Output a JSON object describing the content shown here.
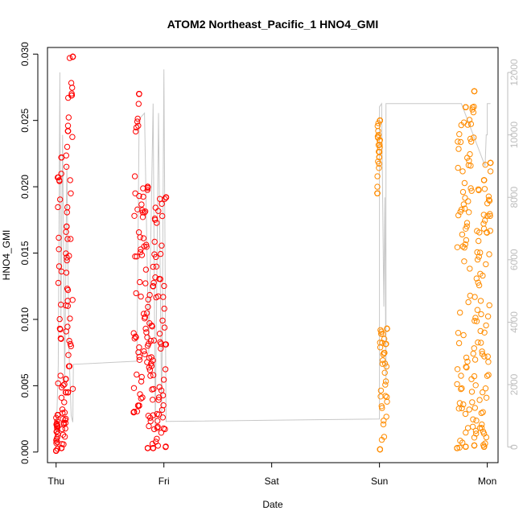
{
  "chart_data": {
    "type": "scatter",
    "title": "ATOM2 Northeast_Pacific_1 HNO4_GMI",
    "xlabel": "Date",
    "ylabel": "HNO4_GMI",
    "x_ticks": [
      "Thu",
      "Fri",
      "Sat",
      "Sun",
      "Mon"
    ],
    "y_ticks": [
      "0.000",
      "0.005",
      "0.010",
      "0.015",
      "0.020",
      "0.025",
      "0.030"
    ],
    "y_right_ticks": [
      "0",
      "2000",
      "4000",
      "6000",
      "8000",
      "10000",
      "12000"
    ],
    "xlim_days": [
      -0.08,
      4.1
    ],
    "ylim": [
      -0.0008,
      0.0305
    ],
    "ylim_right": [
      -500,
      12800
    ],
    "grid": false,
    "series": [
      {
        "color": "#ff0000",
        "marker": "open-circle",
        "segments": [
          {
            "x": [
              0.0,
              0.015
            ],
            "y": [
              0.0001,
              0.0028
            ]
          },
          {
            "x": [
              0.015,
              0.05
            ],
            "y": [
              0.0028,
              0.0222
            ]
          },
          {
            "x": [
              0.05,
              0.09
            ],
            "y": [
              0.0003,
              0.0055
            ]
          },
          {
            "x": [
              0.09,
              0.11
            ],
            "y": [
              0.0045,
              0.0242
            ]
          },
          {
            "x": [
              0.11,
              0.155
            ],
            "y": [
              0.0045,
              0.0298
            ]
          },
          {
            "x": [
              0.72,
              0.77
            ],
            "y": [
              0.003,
              0.027
            ]
          },
          {
            "x": [
              0.77,
              0.85
            ],
            "y": [
              0.0035,
              0.02
            ]
          },
          {
            "x": [
              0.85,
              0.9
            ],
            "y": [
              0.0003,
              0.0125
            ]
          },
          {
            "x": [
              0.9,
              1.02
            ],
            "y": [
              0.0003,
              0.0192
            ]
          }
        ]
      },
      {
        "color": "#ff8c00",
        "marker": "open-circle",
        "segments": [
          {
            "x": [
              2.98,
              3.005
            ],
            "y": [
              0.0195,
              0.025
            ]
          },
          {
            "x": [
              3.005,
              3.07
            ],
            "y": [
              0.0002,
              0.0093
            ]
          },
          {
            "x": [
              3.72,
              3.8
            ],
            "y": [
              0.0003,
              0.026
            ]
          },
          {
            "x": [
              3.8,
              3.88
            ],
            "y": [
              0.0004,
              0.0272
            ]
          },
          {
            "x": [
              3.88,
              3.97
            ],
            "y": [
              0.0005,
              0.0205
            ]
          },
          {
            "x": [
              3.97,
              4.03
            ],
            "y": [
              0.0004,
              0.0218
            ]
          }
        ]
      }
    ],
    "altitude_line": {
      "color": "#c8c8c8",
      "x": [
        0.0,
        0.02,
        0.035,
        0.045,
        0.06,
        0.08,
        0.1,
        0.12,
        0.14,
        0.155,
        0.16,
        0.75,
        0.77,
        0.82,
        0.86,
        0.9,
        0.92,
        0.95,
        0.98,
        1.0,
        1.02,
        1.02,
        3.0,
        3.0,
        3.02,
        3.04,
        3.05,
        3.06,
        3.06,
        3.75,
        3.76,
        3.98,
        3.99,
        4.0,
        4.0,
        4.01,
        4.03
      ],
      "y": [
        100,
        2600,
        12000,
        4000,
        10000,
        2000,
        9000,
        3000,
        1000,
        800,
        2650,
        2750,
        10500,
        10700,
        3000,
        11000,
        500,
        10700,
        900,
        12100,
        800,
        820,
        900,
        10900,
        11000,
        4500,
        8000,
        2000,
        11000,
        11000,
        11000,
        9000,
        10000,
        10000,
        11000,
        11000,
        11000
      ]
    }
  }
}
